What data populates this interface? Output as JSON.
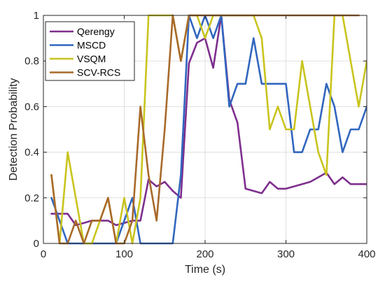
{
  "chart_data": {
    "type": "line",
    "xlabel": "Time (s)",
    "ylabel": "Detection Probability",
    "xlim": [
      0,
      400
    ],
    "ylim": [
      0,
      1
    ],
    "xticks": [
      0,
      100,
      200,
      300,
      400
    ],
    "yticks": [
      0,
      0.2,
      0.4,
      0.6,
      0.8,
      1
    ],
    "xtick_labels": [
      "0",
      "100",
      "200",
      "300",
      "400"
    ],
    "ytick_labels": [
      "0",
      "0.2",
      "0.4",
      "0.6",
      "0.8",
      "1"
    ],
    "grid": true,
    "legend_position": "top-left",
    "series": [
      {
        "name": "Qerengy",
        "color": "#7E2F8E",
        "x": [
          10,
          20,
          30,
          40,
          50,
          60,
          70,
          80,
          90,
          100,
          110,
          120,
          130,
          140,
          150,
          160,
          170,
          180,
          190,
          200,
          210,
          220,
          230,
          240,
          250,
          260,
          270,
          280,
          290,
          300,
          310,
          320,
          330,
          340,
          350,
          360,
          370,
          380,
          390,
          400
        ],
        "y": [
          0.13,
          0.13,
          0.13,
          0.08,
          0.09,
          0.1,
          0.1,
          0.1,
          0.08,
          0.09,
          0.1,
          0.1,
          0.28,
          0.25,
          0.27,
          0.23,
          0.2,
          0.79,
          0.88,
          0.9,
          0.77,
          1.0,
          0.63,
          0.53,
          0.24,
          0.23,
          0.22,
          0.27,
          0.24,
          0.24,
          0.25,
          0.26,
          0.27,
          0.29,
          0.31,
          0.26,
          0.29,
          0.26,
          0.26,
          0.26
        ]
      },
      {
        "name": "MSCD",
        "color": "#3166BE",
        "x": [
          10,
          20,
          30,
          40,
          50,
          60,
          70,
          80,
          90,
          100,
          110,
          120,
          130,
          140,
          150,
          160,
          170,
          180,
          190,
          200,
          210,
          220,
          230,
          240,
          250,
          260,
          270,
          280,
          290,
          300,
          310,
          320,
          330,
          340,
          350,
          360,
          370,
          380,
          390,
          400
        ],
        "y": [
          0.2,
          0.1,
          0.0,
          0.0,
          0.0,
          0.0,
          0.0,
          0.0,
          0.0,
          0.1,
          0.2,
          0.0,
          0.0,
          0.0,
          0.0,
          0.0,
          0.3,
          1.0,
          0.9,
          1.0,
          0.9,
          1.0,
          0.6,
          0.7,
          0.7,
          0.9,
          0.7,
          0.7,
          0.7,
          0.7,
          0.4,
          0.4,
          0.5,
          0.5,
          0.7,
          0.6,
          0.4,
          0.5,
          0.5,
          0.6
        ]
      },
      {
        "name": "VSQM",
        "color": "#C9C41D",
        "x": [
          10,
          20,
          30,
          40,
          50,
          60,
          70,
          80,
          90,
          100,
          110,
          120,
          130,
          140,
          150,
          160,
          170,
          180,
          190,
          200,
          210,
          220,
          230,
          240,
          250,
          260,
          270,
          280,
          290,
          300,
          310,
          320,
          330,
          340,
          350,
          360,
          370,
          380,
          390,
          400
        ],
        "y": [
          0.3,
          0.0,
          0.4,
          0.2,
          0.0,
          0.0,
          0.1,
          0.2,
          0.0,
          0.2,
          0.0,
          0.2,
          1.0,
          1.0,
          1.0,
          1.0,
          0.8,
          1.0,
          1.0,
          0.9,
          1.0,
          1.0,
          1.0,
          1.0,
          1.0,
          1.0,
          0.9,
          0.5,
          0.6,
          0.5,
          0.5,
          0.8,
          0.6,
          0.4,
          0.3,
          1.0,
          1.0,
          0.8,
          0.6,
          0.8
        ]
      },
      {
        "name": "SCV-RCS",
        "color": "#A86A2A",
        "x": [
          10,
          20,
          30,
          40,
          50,
          60,
          70,
          80,
          90,
          100,
          110,
          120,
          130,
          140,
          150,
          160,
          170,
          180,
          190,
          200,
          210,
          220,
          230,
          240,
          250,
          260,
          270,
          280,
          290,
          300,
          310,
          320,
          330,
          340,
          350,
          360,
          370,
          380,
          390
        ],
        "y": [
          0.3,
          0.0,
          0.0,
          0.1,
          0.0,
          0.1,
          0.1,
          0.2,
          0.0,
          0.0,
          0.1,
          0.6,
          0.3,
          0.1,
          0.5,
          1.0,
          0.8,
          1.0,
          1.0,
          1.0,
          1.0,
          1.0,
          1.0,
          1.0,
          1.0,
          1.0,
          1.0,
          1.0,
          1.0,
          1.0,
          1.0,
          1.0,
          1.0,
          1.0,
          1.0,
          1.0,
          1.0,
          1.0,
          1.0
        ]
      }
    ]
  }
}
